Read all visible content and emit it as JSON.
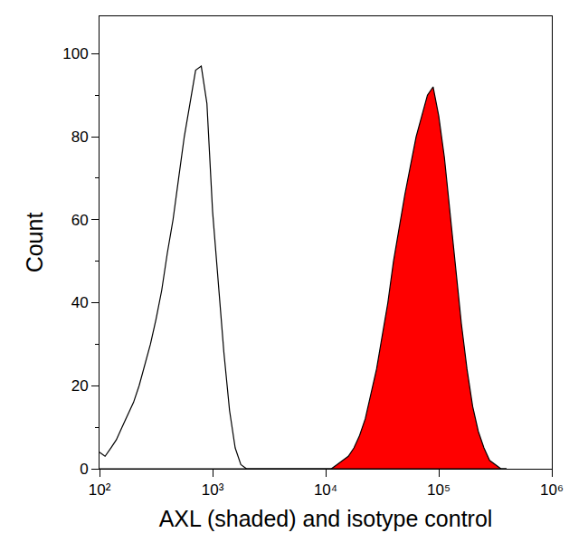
{
  "chart_data": {
    "type": "line",
    "x_label": "AXL (shaded) and isotype control",
    "y_label": "Count",
    "log": "x",
    "grid": false,
    "xlim": [
      100,
      1000000
    ],
    "xticks": [
      {
        "value": 100,
        "label": "10²"
      },
      {
        "value": 1000,
        "label": "10³"
      },
      {
        "value": 10000,
        "label": "10⁴"
      },
      {
        "value": 100000,
        "label": "10⁵"
      },
      {
        "value": 1000000,
        "label": "10⁶"
      }
    ],
    "ylim": [
      0,
      109
    ],
    "yticks": [
      0,
      20,
      40,
      60,
      80,
      100
    ],
    "x": [
      100,
      112,
      126,
      141,
      158,
      178,
      200,
      224,
      251,
      282,
      316,
      355,
      398,
      447,
      501,
      562,
      631,
      708,
      794,
      891,
      1000,
      1122,
      1259,
      1413,
      1585,
      1778,
      1995,
      2239,
      2512,
      2818,
      3162,
      3548,
      3981,
      4467,
      5012,
      5623,
      6310,
      7079,
      7943,
      8913,
      10000,
      11220,
      12589,
      14125,
      15849,
      17783,
      19953,
      22387,
      25119,
      28184,
      31623,
      35481,
      39811,
      44668,
      50119,
      56234,
      63096,
      70795,
      79433,
      89125,
      100000,
      112202,
      125893,
      141254,
      158489,
      177828,
      199526,
      223872,
      251189,
      281838,
      316228,
      354813,
      398107
    ],
    "series": [
      {
        "type": "line",
        "color": "#000000",
        "values": [
          4,
          3,
          5,
          7,
          10,
          13,
          16,
          20,
          25,
          30,
          36,
          43,
          52,
          60,
          70,
          80,
          88,
          96,
          97,
          88,
          62,
          45,
          28,
          14,
          5,
          1,
          0,
          0,
          0,
          0,
          0,
          0,
          0,
          0,
          0,
          0,
          0,
          0,
          0,
          0,
          0,
          0,
          0,
          0,
          0,
          0,
          0,
          0,
          0,
          0,
          0,
          0,
          0,
          0,
          0,
          0,
          0,
          0,
          0,
          0,
          0,
          0,
          0,
          0,
          0,
          0,
          0,
          0,
          0,
          0,
          0,
          0,
          0
        ]
      },
      {
        "type": "area",
        "color": "#ff0000",
        "values": [
          0,
          0,
          0,
          0,
          0,
          0,
          0,
          0,
          0,
          0,
          0,
          0,
          0,
          0,
          0,
          0,
          0,
          0,
          0,
          0,
          0,
          0,
          0,
          0,
          0,
          0,
          0,
          0,
          0,
          0,
          0,
          0,
          0,
          0,
          0,
          0,
          0,
          0,
          0,
          0,
          0,
          0,
          1,
          2,
          3,
          5,
          8,
          12,
          18,
          24,
          32,
          40,
          50,
          58,
          66,
          73,
          80,
          85,
          90,
          92,
          85,
          75,
          62,
          48,
          35,
          24,
          15,
          9,
          5,
          2,
          1,
          0,
          0
        ]
      }
    ]
  }
}
